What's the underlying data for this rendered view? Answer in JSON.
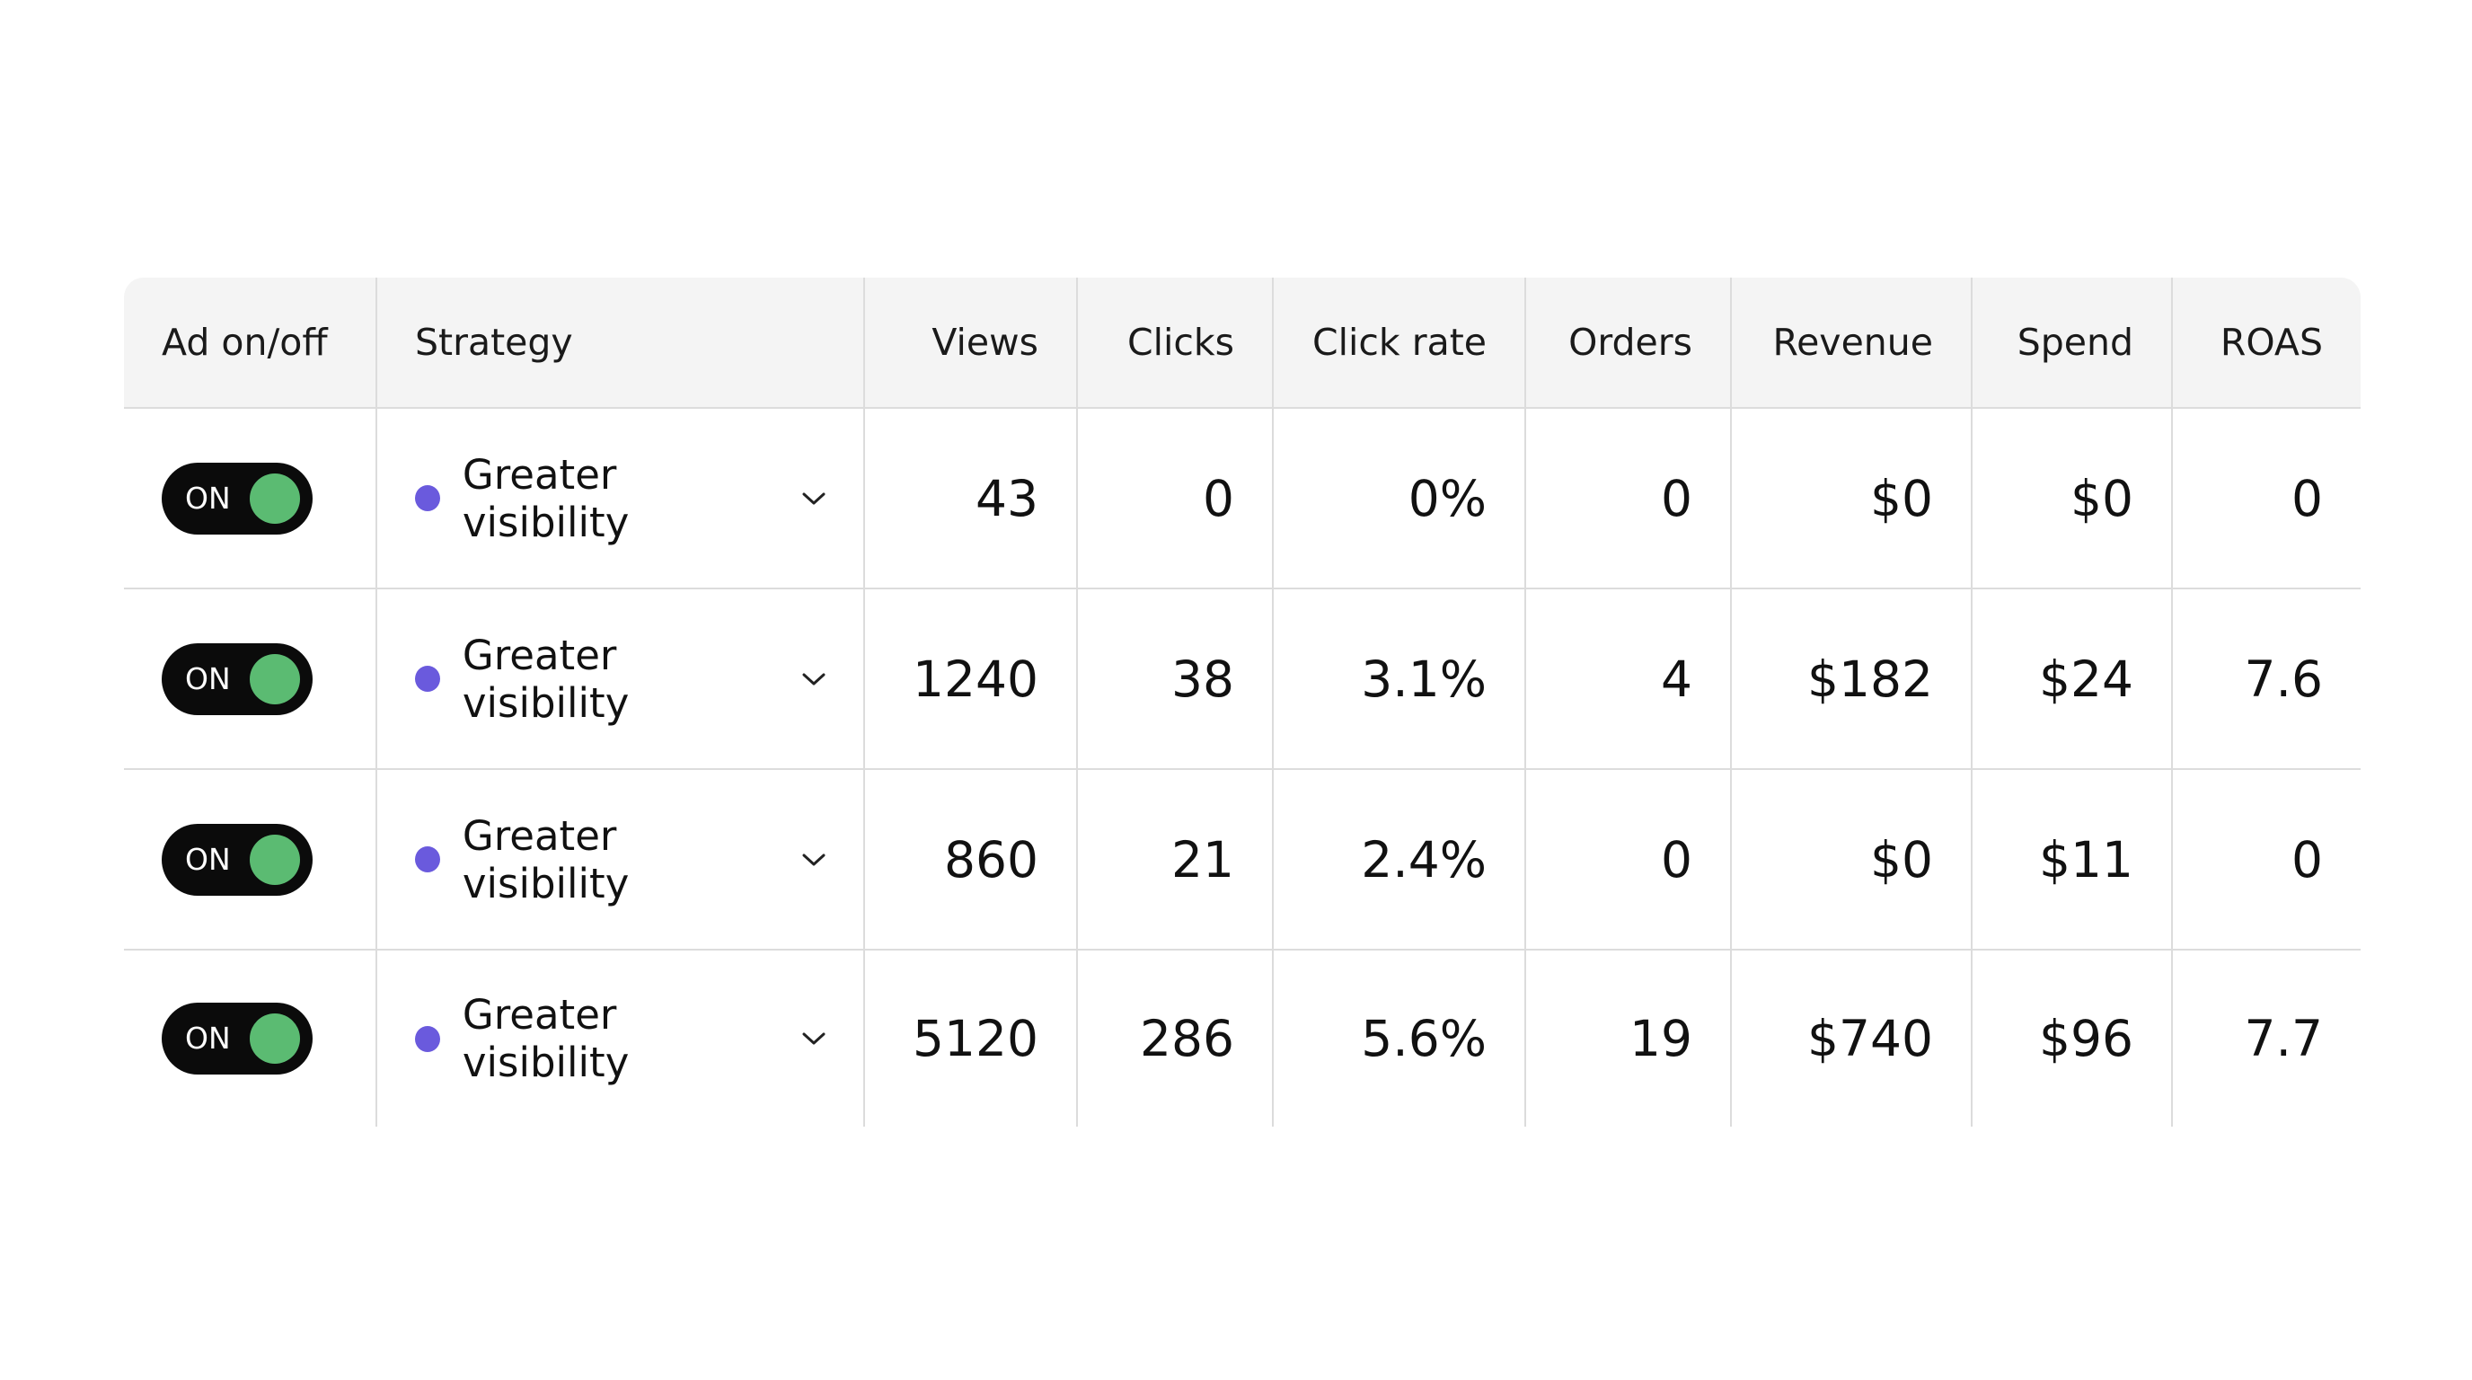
{
  "table": {
    "columns": [
      "Ad on/off",
      "Strategy",
      "Views",
      "Clicks",
      "Click rate",
      "Orders",
      "Revenue",
      "Spend",
      "ROAS"
    ],
    "rows": [
      [
        "ON",
        "Greater visibility",
        "43",
        "0",
        "0%",
        "0",
        "$0",
        "$0",
        "0"
      ],
      [
        "ON",
        "Greater visibility",
        "1240",
        "38",
        "3.1%",
        "4",
        "$182",
        "$24",
        "7.6"
      ],
      [
        "ON",
        "Greater visibility",
        "860",
        "21",
        "2.4%",
        "0",
        "$0",
        "$11",
        "0"
      ],
      [
        "ON",
        "Greater visibility",
        "5120",
        "286",
        "5.6%",
        "19",
        "$740",
        "$96",
        "7.7"
      ]
    ]
  }
}
